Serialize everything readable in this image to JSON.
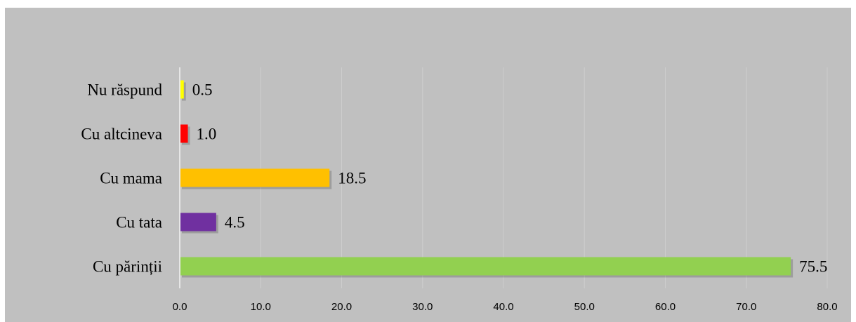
{
  "chart_data": {
    "type": "bar",
    "orientation": "horizontal",
    "categories": [
      "Cu părinții",
      "Cu tata",
      "Cu mama",
      "Cu altcineva",
      "Nu răspund"
    ],
    "values": [
      75.5,
      4.5,
      18.5,
      1.0,
      0.5
    ],
    "value_labels": [
      "75.5",
      "4.5",
      "18.5",
      "1.0",
      "0.5"
    ],
    "colors": [
      "#92d050",
      "#7030a0",
      "#ffc000",
      "#ff0000",
      "#ffff00"
    ],
    "xlim": [
      0,
      80
    ],
    "xticks": [
      "0.0",
      "10.0",
      "20.0",
      "30.0",
      "40.0",
      "50.0",
      "60.0",
      "70.0",
      "80.0"
    ],
    "grid": true,
    "legend": "none",
    "background": "#c0c0c0"
  }
}
